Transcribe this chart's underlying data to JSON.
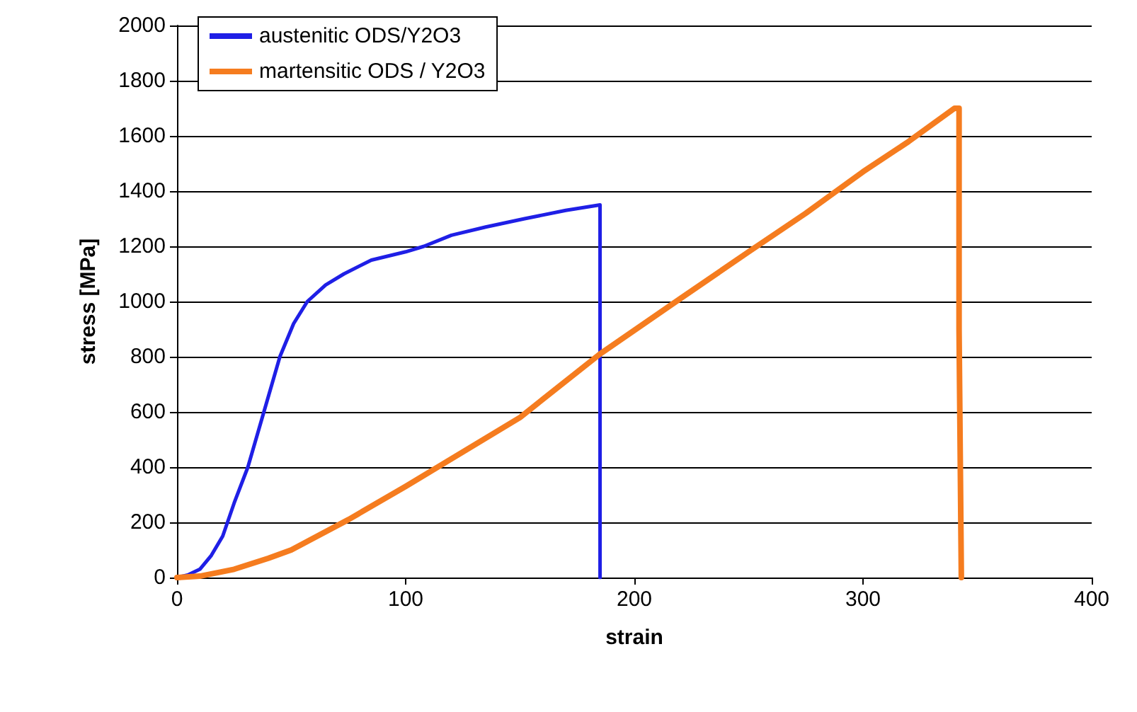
{
  "chart_data": {
    "type": "line",
    "xlabel": "strain",
    "ylabel": "stress [MPa]",
    "xlim": [
      0,
      400
    ],
    "xticks": [
      0,
      100,
      200,
      300,
      400
    ],
    "ylim": [
      0,
      2000
    ],
    "yticks": [
      0,
      200,
      400,
      600,
      800,
      1000,
      1200,
      1400,
      1600,
      1800,
      2000
    ],
    "grid": "y",
    "legend": "top left",
    "marker": "none",
    "line_style": "solid",
    "series": [
      {
        "name": "austenitic ODS/Y2O3",
        "color": "#1f1fe6",
        "x": [
          0,
          5,
          10,
          15,
          20,
          25,
          31,
          38,
          45,
          51,
          57,
          65,
          73,
          85,
          100,
          108,
          120,
          135,
          152,
          170,
          185,
          185
        ],
        "values": [
          0,
          10,
          30,
          80,
          150,
          270,
          400,
          600,
          800,
          920,
          1000,
          1060,
          1100,
          1150,
          1180,
          1200,
          1240,
          1270,
          1300,
          1330,
          1350,
          0
        ]
      },
      {
        "name": "martensitic ODS / Y2O3",
        "color": "#f57c1f",
        "x": [
          0,
          10,
          25,
          40,
          50,
          75,
          100,
          150,
          185,
          220,
          250,
          275,
          300,
          320,
          340,
          342,
          342,
          343
        ],
        "values": [
          0,
          5,
          30,
          70,
          100,
          210,
          330,
          580,
          810,
          1010,
          1180,
          1320,
          1470,
          1580,
          1700,
          1700,
          900,
          0
        ]
      }
    ]
  }
}
